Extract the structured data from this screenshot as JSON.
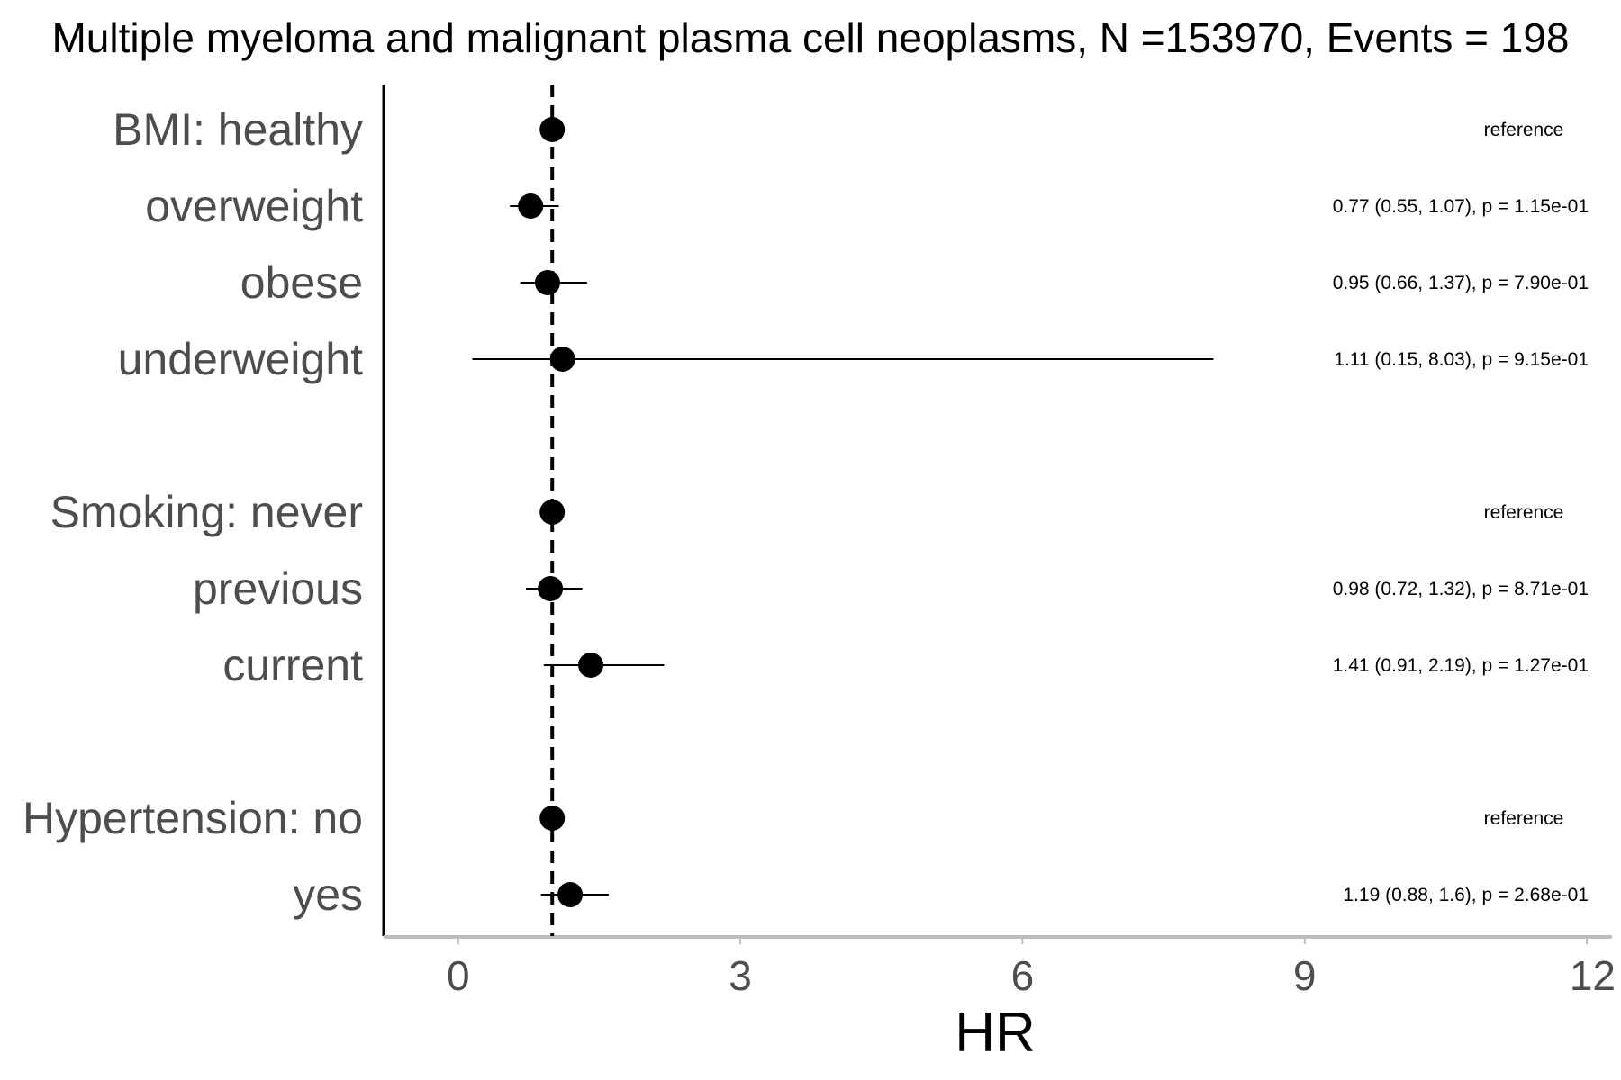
{
  "chart_data": {
    "type": "forest",
    "title": "Multiple myeloma and malignant plasma cell neoplasms, N =153970, Events = 198",
    "xlabel": "HR",
    "xlim": [
      -0.4,
      12
    ],
    "xticks": [
      0,
      3,
      6,
      9,
      12
    ],
    "reference_line": 1,
    "rows": [
      {
        "label": "BMI: healthy",
        "hr": 1.0,
        "lower": 1.0,
        "upper": 1.0,
        "annotation": "reference"
      },
      {
        "label": "overweight",
        "hr": 0.77,
        "lower": 0.55,
        "upper": 1.07,
        "annotation": "0.77 (0.55, 1.07), p = 1.15e-01"
      },
      {
        "label": "obese",
        "hr": 0.95,
        "lower": 0.66,
        "upper": 1.37,
        "annotation": "0.95 (0.66, 1.37), p = 7.90e-01"
      },
      {
        "label": "underweight",
        "hr": 1.11,
        "lower": 0.15,
        "upper": 8.03,
        "annotation": "1.11 (0.15, 8.03), p = 9.15e-01"
      },
      {
        "label": "Smoking: never",
        "hr": 1.0,
        "lower": 1.0,
        "upper": 1.0,
        "annotation": "reference"
      },
      {
        "label": "previous",
        "hr": 0.98,
        "lower": 0.72,
        "upper": 1.32,
        "annotation": "0.98 (0.72, 1.32), p = 8.71e-01"
      },
      {
        "label": "current",
        "hr": 1.41,
        "lower": 0.91,
        "upper": 2.19,
        "annotation": "1.41 (0.91, 2.19), p = 1.27e-01"
      },
      {
        "label": "Hypertension: no",
        "hr": 1.0,
        "lower": 1.0,
        "upper": 1.0,
        "annotation": "reference"
      },
      {
        "label": "yes",
        "hr": 1.19,
        "lower": 0.88,
        "upper": 1.6,
        "annotation": "1.19 (0.88, 1.6), p = 2.68e-01"
      }
    ]
  }
}
